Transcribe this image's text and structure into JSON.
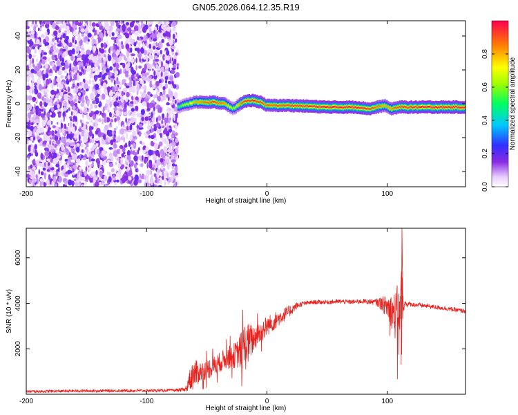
{
  "chart_data": [
    {
      "type": "heatmap",
      "title": "GN05.2026.064.12.35.R19",
      "xlabel": "Height of straight line (km)",
      "ylabel": "Frequency (Hz)",
      "xlim": [
        -200,
        165
      ],
      "ylim": [
        -49,
        49
      ],
      "x_ticks": [
        -200,
        -100,
        0,
        100
      ],
      "y_ticks": [
        -40,
        -20,
        0,
        20,
        40
      ],
      "colorbar": {
        "label": "Normalized spectral amplitude",
        "range": [
          0,
          1
        ],
        "ticks": [
          0.0,
          0.2,
          0.4,
          0.6,
          0.8
        ],
        "tick_labels": [
          "0.0",
          "0.2",
          "0.4",
          "0.6",
          "0.8"
        ]
      },
      "noise_region_x": [
        -200,
        -74
      ],
      "signal_track": {
        "x": [
          -74,
          -60,
          -45,
          -35,
          -28,
          -20,
          -12,
          -5,
          0,
          20,
          50,
          75,
          85,
          92,
          98,
          103,
          110,
          130,
          165
        ],
        "freq": [
          -2,
          1,
          1,
          0,
          -3,
          1,
          2,
          1,
          -1,
          -1,
          -2,
          -2,
          -3,
          -2,
          -1,
          -3,
          -2,
          -2,
          -2
        ],
        "amplitude": [
          0.4,
          0.7,
          0.85,
          0.75,
          0.5,
          0.85,
          0.9,
          0.85,
          0.8,
          0.85,
          0.9,
          0.9,
          0.85,
          0.8,
          0.7,
          0.75,
          0.85,
          0.9,
          0.9
        ]
      }
    },
    {
      "type": "line",
      "xlabel": "Height of straight line (km)",
      "ylabel": "SNR (10 * v/v)",
      "xlim": [
        -200,
        165
      ],
      "ylim": [
        0,
        7300
      ],
      "x_ticks": [
        -200,
        -100,
        0,
        100
      ],
      "y_ticks": [
        2000,
        4000,
        6000
      ],
      "series": [
        {
          "name": "SNR",
          "color": "#e8231f",
          "x": [
            -200,
            -150,
            -100,
            -80,
            -68,
            -62,
            -55,
            -45,
            -35,
            -25,
            -18,
            -10,
            0,
            10,
            20,
            25,
            30,
            40,
            50,
            60,
            70,
            80,
            90,
            95,
            100,
            103,
            106,
            109,
            111,
            112,
            113,
            115,
            120,
            130,
            145,
            165
          ],
          "y": [
            120,
            150,
            160,
            170,
            200,
            850,
            1000,
            1200,
            1550,
            1750,
            2100,
            2500,
            3000,
            3350,
            3700,
            3900,
            3990,
            4050,
            4050,
            4080,
            4060,
            4090,
            4050,
            4000,
            3850,
            3700,
            3500,
            3300,
            3200,
            3600,
            4000,
            3980,
            3950,
            3900,
            3800,
            3650
          ],
          "noise": [
            60,
            60,
            60,
            60,
            80,
            700,
            450,
            450,
            450,
            600,
            1100,
            550,
            450,
            350,
            250,
            150,
            100,
            100,
            100,
            100,
            100,
            110,
            130,
            300,
            500,
            700,
            1000,
            1600,
            2200,
            2500,
            400,
            150,
            100,
            100,
            100,
            100
          ]
        }
      ]
    }
  ]
}
